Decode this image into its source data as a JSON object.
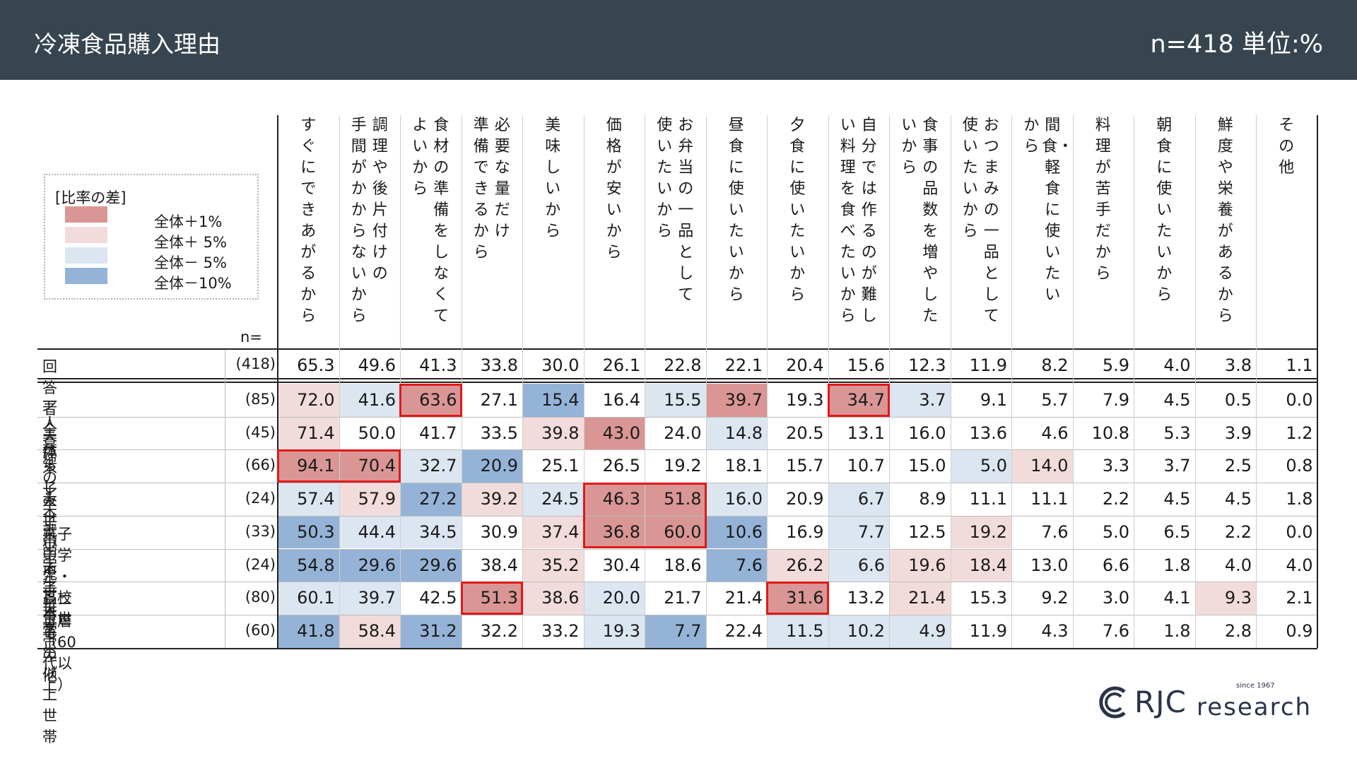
{
  "header": {
    "title": "冷凍食品購入理由",
    "meta": "n=418 単位:%"
  },
  "legend": {
    "title": "[比率の差]",
    "items": [
      {
        "label": "全体＋1%",
        "color": "#d99694"
      },
      {
        "label": "全体＋ 5%",
        "color": "#f2dcdb"
      },
      {
        "label": "全体－ 5%",
        "color": "#dce6f1"
      },
      {
        "label": "全体－10%",
        "color": "#95b3d7"
      }
    ]
  },
  "colors": {
    "high": "#d99694",
    "midhigh": "#f2dcdb",
    "midlow": "#dce6f1",
    "low": "#95b3d7",
    "highlight": "#e01919"
  },
  "logo": {
    "brand": "RJC",
    "word": "research",
    "since": "since 1967"
  },
  "chart_data": {
    "type": "table",
    "n_label": "n=",
    "columns": [
      "すぐにできあがるから",
      "調理や後片付けの手間がかからないから",
      "食材の準備をしなくてよいから",
      "必要な量だけ準備できるから",
      "美味しいから",
      "価格が安いから",
      "お弁当の一品として使いたいから",
      "昼食に使いたいから",
      "夕食に使いたいから",
      "自分では作るのが難しい料理を食べたいから",
      "食事の品数を増やしたいから",
      "おつまみの一品として使いたいから",
      "間食・軽食に使いたいから",
      "料理が苦手だから",
      "朝食に使いたいから",
      "鮮度や栄養があるから",
      "その他"
    ],
    "header_lines": [
      [
        "すぐにできあがるから"
      ],
      [
        "調理や後片付けの",
        "手間がかからないから"
      ],
      [
        "食材の準備をしなくて",
        "よいから"
      ],
      [
        "必要な量だけ",
        "準備できるから"
      ],
      [
        "美味しいから"
      ],
      [
        "価格が安いから"
      ],
      [
        "お弁当の一品として",
        "使いたいから"
      ],
      [
        "昼食に使いたいから"
      ],
      [
        "夕食に使いたいから"
      ],
      [
        "自分では作るのが難し",
        "い料理を食べたいから"
      ],
      [
        "食事の品数を増やした",
        "いから"
      ],
      [
        "おつまみの一品として",
        "使いたいから"
      ],
      [
        "間食・軽食に使いたい",
        "から"
      ],
      [
        "料理が苦手だから"
      ],
      [
        "朝食に使いたいから"
      ],
      [
        "鮮度や栄養があるから"
      ],
      [
        "その他"
      ]
    ],
    "total": {
      "label": "回答者全体",
      "n": "(418)",
      "values": [
        65.3,
        49.6,
        41.3,
        33.8,
        30.0,
        26.1,
        22.8,
        22.1,
        20.4,
        15.6,
        12.3,
        11.9,
        8.2,
        5.9,
        4.0,
        3.8,
        1.1
      ]
    },
    "rows": [
      {
        "label": "一人暮らし",
        "n": "(85)",
        "values": [
          72.0,
          41.6,
          63.6,
          27.1,
          15.4,
          16.4,
          15.5,
          39.7,
          19.3,
          34.7,
          3.7,
          9.1,
          5.7,
          7.9,
          4.5,
          0.5,
          0.0
        ],
        "shade": [
          "h",
          "l",
          "H",
          "n",
          "L",
          "n",
          "l",
          "H",
          "n",
          "H",
          "l",
          "n",
          "n",
          "n",
          "n",
          "n",
          "n"
        ],
        "boxes": [
          [
            2,
            2
          ],
          [
            9,
            9
          ]
        ]
      },
      {
        "label": "夫婦のみ世帯",
        "n": "(45)",
        "values": [
          71.4,
          50.0,
          41.7,
          33.5,
          39.8,
          43.0,
          24.0,
          14.8,
          20.5,
          13.1,
          16.0,
          13.6,
          4.6,
          10.8,
          5.3,
          3.9,
          1.2
        ],
        "shade": [
          "h",
          "n",
          "n",
          "n",
          "h",
          "H",
          "n",
          "l",
          "n",
          "n",
          "n",
          "n",
          "n",
          "n",
          "n",
          "n",
          "n"
        ],
        "boxes": []
      },
      {
        "label": "末子未就学児世帯",
        "n": "(66)",
        "values": [
          94.1,
          70.4,
          32.7,
          20.9,
          25.1,
          26.5,
          19.2,
          18.1,
          15.7,
          10.7,
          15.0,
          5.0,
          14.0,
          3.3,
          3.7,
          2.5,
          0.8
        ],
        "shade": [
          "H",
          "H",
          "l",
          "L",
          "n",
          "n",
          "n",
          "n",
          "n",
          "n",
          "n",
          "l",
          "h",
          "n",
          "n",
          "n",
          "n"
        ],
        "boxes": [
          [
            0,
            1
          ]
        ]
      },
      {
        "label": "末子小学生世帯",
        "n": "(24)",
        "values": [
          57.4,
          57.9,
          27.2,
          39.2,
          24.5,
          46.3,
          51.8,
          16.0,
          20.9,
          6.7,
          8.9,
          11.1,
          11.1,
          2.2,
          4.5,
          4.5,
          1.8
        ],
        "shade": [
          "l",
          "h",
          "L",
          "h",
          "l",
          "H",
          "H",
          "l",
          "n",
          "l",
          "n",
          "n",
          "n",
          "n",
          "n",
          "n",
          "n"
        ],
        "boxes": [
          [
            5,
            6
          ]
        ]
      },
      {
        "label": "末子中学生・高校生世帯",
        "n": "(33)",
        "values": [
          50.3,
          44.4,
          34.5,
          30.9,
          37.4,
          36.8,
          60.0,
          10.6,
          16.9,
          7.7,
          12.5,
          19.2,
          7.6,
          5.0,
          6.5,
          2.2,
          0.0
        ],
        "shade": [
          "L",
          "l",
          "l",
          "n",
          "h",
          "H",
          "H",
          "L",
          "n",
          "l",
          "n",
          "h",
          "n",
          "n",
          "n",
          "n",
          "n"
        ],
        "boxes": [
          [
            5,
            6
          ]
        ]
      },
      {
        "label": "末子大学生以上世帯",
        "n": "(24)",
        "values": [
          54.8,
          29.6,
          29.6,
          38.4,
          35.2,
          30.4,
          18.6,
          7.6,
          26.2,
          6.6,
          19.6,
          18.4,
          13.0,
          6.6,
          1.8,
          4.0,
          4.0
        ],
        "shade": [
          "L",
          "L",
          "L",
          "n",
          "h",
          "n",
          "n",
          "L",
          "h",
          "l",
          "h",
          "h",
          "n",
          "n",
          "n",
          "n",
          "n"
        ],
        "boxes": []
      },
      {
        "label": "シニア層（60代以上）",
        "n": "(80)",
        "values": [
          60.1,
          39.7,
          42.5,
          51.3,
          38.6,
          20.0,
          21.7,
          21.4,
          31.6,
          13.2,
          21.4,
          15.3,
          9.2,
          3.0,
          4.1,
          9.3,
          2.1
        ],
        "shade": [
          "l",
          "l",
          "n",
          "H",
          "h",
          "l",
          "n",
          "n",
          "H",
          "n",
          "h",
          "n",
          "n",
          "n",
          "n",
          "h",
          "n"
        ],
        "boxes": [
          [
            3,
            3
          ],
          [
            8,
            8
          ]
        ]
      },
      {
        "label": "その他",
        "n": "(60)",
        "values": [
          41.8,
          58.4,
          31.2,
          32.2,
          33.2,
          19.3,
          7.7,
          22.4,
          11.5,
          10.2,
          4.9,
          11.9,
          4.3,
          7.6,
          1.8,
          2.8,
          0.9
        ],
        "shade": [
          "L",
          "h",
          "L",
          "n",
          "n",
          "l",
          "L",
          "n",
          "l",
          "l",
          "l",
          "n",
          "n",
          "n",
          "n",
          "n",
          "n"
        ],
        "boxes": []
      }
    ]
  }
}
